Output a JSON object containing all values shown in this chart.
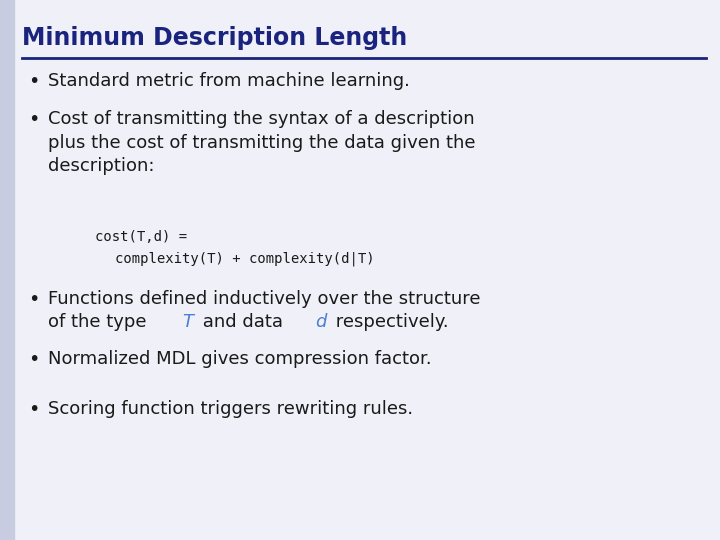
{
  "title": "Minimum Description Length",
  "title_color": "#1a237e",
  "title_fontsize": 17,
  "background_color": "#f0f0f8",
  "left_bar_color": "#c8cce0",
  "rule_color": "#1a237e",
  "bullet_color": "#1a1a1a",
  "bullet_fontsize": 13,
  "code_fontsize": 10,
  "bullet_symbol": "•",
  "T_color": "#4a7fd4",
  "d_color": "#4a7fd4",
  "code_line1": "cost(T,d) =",
  "code_line2": "complexity(T) + complexity(d|T)"
}
